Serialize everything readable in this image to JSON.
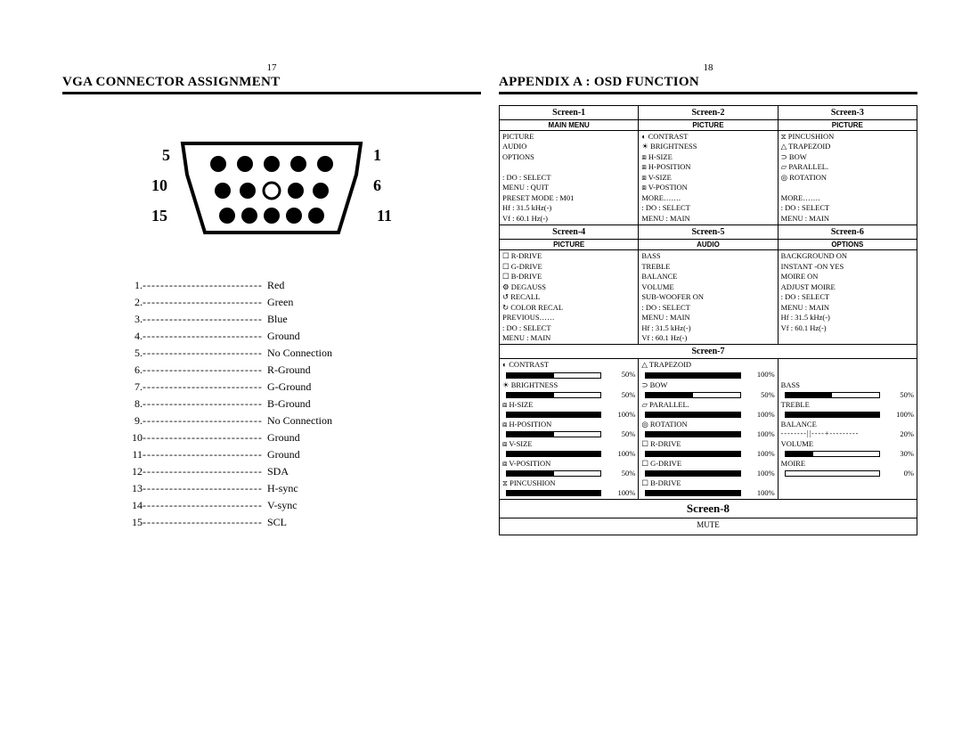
{
  "left": {
    "pageNum": "17",
    "title": "VGA CONNECTOR ASSIGNMENT",
    "vgaLabels": {
      "l5": "5",
      "l1": "1",
      "l10": "10",
      "l6": "6",
      "l15": "15",
      "l11": "11"
    },
    "pins": [
      {
        "n": "1.",
        "label": "Red"
      },
      {
        "n": "2.",
        "label": "Green"
      },
      {
        "n": "3.",
        "label": "Blue"
      },
      {
        "n": "4.",
        "label": "Ground"
      },
      {
        "n": "5.",
        "label": "No Connection"
      },
      {
        "n": "6.",
        "label": "R-Ground"
      },
      {
        "n": "7.",
        "label": "G-Ground"
      },
      {
        "n": "8.",
        "label": "B-Ground"
      },
      {
        "n": "9.",
        "label": "No Connection"
      },
      {
        "n": "10",
        "label": "Ground"
      },
      {
        "n": "11",
        "label": "Ground"
      },
      {
        "n": "12",
        "label": "SDA"
      },
      {
        "n": "13",
        "label": "H-sync"
      },
      {
        "n": "14",
        "label": "V-sync"
      },
      {
        "n": "15",
        "label": "SCL"
      }
    ]
  },
  "right": {
    "pageNum": "18",
    "title": "APPENDIX A : OSD FUNCTION",
    "cells": [
      [
        {
          "hdr": "Screen-1",
          "sub": "MAIN MENU",
          "lines": [
            "PICTURE",
            "AUDIO",
            "OPTIONS",
            "",
            ": DO        : SELECT",
            "MENU : QUIT",
            "PRESET MODE : M01",
            "Hf : 31.5 kHz(-)",
            "Vf : 60.1 Hz(-)"
          ]
        },
        {
          "hdr": "Screen-2",
          "sub": "PICTURE",
          "lines": [
            "◐  CONTRAST",
            "☀  BRIGHTNESS",
            "⧈  H-SIZE",
            "⧈  H-POSITION",
            "⧈  V-SIZE",
            "⧈  V-POSTION",
            "MORE…….",
            "   : DO      : SELECT",
            "MENU : MAIN"
          ]
        },
        {
          "hdr": "Screen-3",
          "sub": "PICTURE",
          "lines": [
            "⧖  PINCUSHION",
            "△  TRAPEZOID",
            "⊃   BOW",
            "▱  PARALLEL.",
            "◎  ROTATION",
            "",
            "MORE…….",
            "   : DO      : SELECT",
            "MENU : MAIN"
          ]
        }
      ],
      [
        {
          "hdr": "Screen-4",
          "sub": "PICTURE",
          "lines": [
            "☐  R-DRIVE",
            "☐  G-DRIVE",
            "☐  B-DRIVE",
            "⚙  DEGAUSS",
            "↺  RECALL",
            "↻  COLOR RECAL",
            "PREVIOUS……",
            "   : DO     : SELECT",
            "MENU : MAIN"
          ]
        },
        {
          "hdr": "Screen-5",
          "sub": "AUDIO",
          "lines": [
            "BASS",
            "TREBLE",
            "BALANCE",
            "VOLUME",
            "SUB-WOOFER    ON",
            "   : DO       : SELECT",
            "MENU : MAIN",
            "Hf : 31.5 kHz(-)",
            "Vf : 60.1 Hz(-)"
          ]
        },
        {
          "hdr": "Screen-6",
          "sub": "OPTIONS",
          "lines": [
            "BACKGROUND            ON",
            "INSTANT -ON               YES",
            "MOIRE                            ON",
            "ADJUST  MOIRE",
            "   : DO       : SELECT",
            "MENU : MAIN",
            "Hf : 31.5 kHz(-)",
            "Vf : 60.1 Hz(-)"
          ]
        }
      ]
    ],
    "screen7": {
      "hdr": "Screen-7",
      "cols": [
        [
          {
            "label": "◐ CONTRAST",
            "pct": "50%",
            "fill": 50,
            "special": ""
          },
          {
            "label": "☀ BRIGHTNESS",
            "pct": "50%",
            "fill": 50,
            "special": ""
          },
          {
            "label": "⧈ H-SIZE",
            "pct": "100%",
            "fill": 100,
            "special": ""
          },
          {
            "label": "⧈ H-POSITION",
            "pct": "50%",
            "fill": 50,
            "special": ""
          },
          {
            "label": "⧈ V-SIZE",
            "pct": "100%",
            "fill": 100,
            "special": ""
          },
          {
            "label": "⧈ V-POSITION",
            "pct": "50%",
            "fill": 50,
            "special": ""
          },
          {
            "label": "⧖ PINCUSHION",
            "pct": "100%",
            "fill": 100,
            "special": ""
          }
        ],
        [
          {
            "label": "△ TRAPEZOID",
            "pct": "100%",
            "fill": 100,
            "special": ""
          },
          {
            "label": "⊃ BOW",
            "pct": "50%",
            "fill": 50,
            "special": ""
          },
          {
            "label": "▱ PARALLEL.",
            "pct": "100%",
            "fill": 100,
            "special": ""
          },
          {
            "label": "◎ ROTATION",
            "pct": "100%",
            "fill": 100,
            "special": ""
          },
          {
            "label": "☐ R-DRIVE",
            "pct": "100%",
            "fill": 100,
            "special": ""
          },
          {
            "label": "☐ G-DRIVE",
            "pct": "100%",
            "fill": 100,
            "special": ""
          },
          {
            "label": "☐ B-DRIVE",
            "pct": "100%",
            "fill": 100,
            "special": ""
          }
        ],
        [
          {
            "label": "BASS",
            "pct": "50%",
            "fill": 50,
            "special": ""
          },
          {
            "label": "TREBLE",
            "pct": "100%",
            "fill": 100,
            "special": ""
          },
          {
            "label": "BALANCE",
            "pct": "20%",
            "fill": 0,
            "special": "balance"
          },
          {
            "label": "VOLUME",
            "pct": "30%",
            "fill": 30,
            "special": ""
          },
          {
            "label": "MOIRE",
            "pct": "0%",
            "fill": 0,
            "special": ""
          }
        ]
      ]
    },
    "screen8": {
      "hdr": "Screen-8",
      "body": "MUTE"
    }
  }
}
